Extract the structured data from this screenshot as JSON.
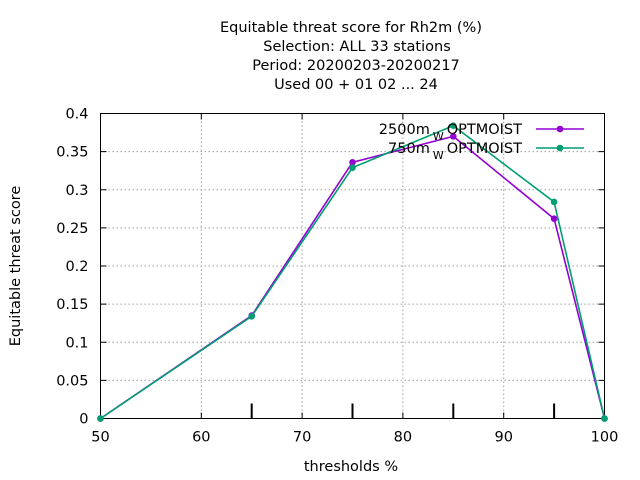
{
  "chart_data": {
    "type": "line",
    "title_lines": [
      "Equitable threat score  for Rh2m (%)",
      "Selection: ALL     33 stations",
      "Period: 20200203-20200217",
      "Used  00 + 01 02 ... 24"
    ],
    "xlabel": "thresholds %",
    "ylabel": "Equitable threat score",
    "xlim": [
      50,
      100
    ],
    "ylim": [
      0,
      0.4
    ],
    "x_ticks": [
      50,
      60,
      70,
      80,
      90,
      100
    ],
    "x_tick_labels": [
      "50",
      "60",
      "70",
      "80",
      "90",
      "100"
    ],
    "y_ticks": [
      0,
      0.05,
      0.1,
      0.15,
      0.2,
      0.25,
      0.3,
      0.35,
      0.4
    ],
    "y_tick_labels": [
      "0",
      "0.05",
      "0.1",
      "0.15",
      "0.2",
      "0.25",
      "0.3",
      "0.35",
      "0.4"
    ],
    "threshold_marks": [
      65,
      75,
      85,
      95
    ],
    "grid": true,
    "legend_position": "top-right",
    "series": [
      {
        "legend_main": "2500m",
        "legend_sub": "W",
        "legend_tail": "OPTMOIST",
        "color": "#9400d3",
        "x": [
          50,
          65,
          75,
          85,
          95,
          100
        ],
        "values": [
          0,
          0.135,
          0.336,
          0.37,
          0.262,
          0
        ]
      },
      {
        "legend_main": "750m",
        "legend_sub": "W",
        "legend_tail": "OPTMOIST",
        "color": "#009e73",
        "x": [
          50,
          65,
          75,
          85,
          95,
          100
        ],
        "values": [
          0,
          0.134,
          0.329,
          0.384,
          0.284,
          0
        ]
      }
    ]
  }
}
